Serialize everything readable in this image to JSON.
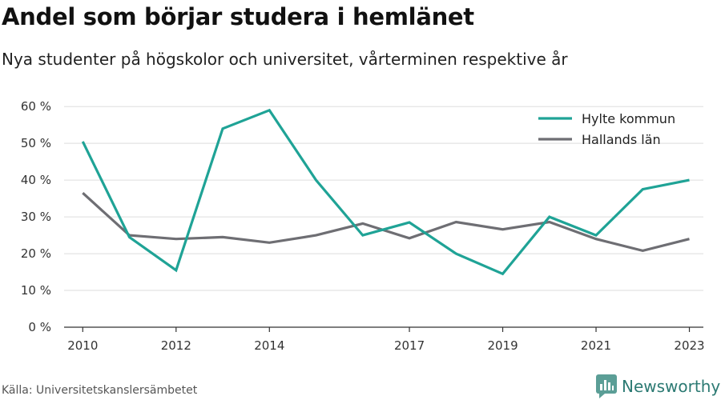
{
  "title": "Andel som börjar studera i hemlänet",
  "subtitle": "Nya studenter på högskolor och universitet, vårterminen respektive år",
  "source": "Källa: Universitetskanslersämbetet",
  "brand": "Newsworthy",
  "colors": {
    "hylte": "#1fa396",
    "halland": "#6e6e73",
    "grid": "#dddddd",
    "axis": "#333333",
    "brand": "#2c7a73"
  },
  "chart_data": {
    "type": "line",
    "x": [
      2010,
      2011,
      2012,
      2013,
      2014,
      2015,
      2016,
      2017,
      2018,
      2019,
      2020,
      2021,
      2022,
      2023
    ],
    "x_tick_labels": [
      "2010",
      "2012",
      "2014",
      "2017",
      "2019",
      "2021",
      "2023"
    ],
    "x_tick_values": [
      2010,
      2012,
      2014,
      2017,
      2019,
      2021,
      2023
    ],
    "y_tick_labels": [
      "0 %",
      "10 %",
      "20 %",
      "30 %",
      "40 %",
      "50 %",
      "60 %"
    ],
    "y_tick_values": [
      0,
      10,
      20,
      30,
      40,
      50,
      60
    ],
    "ylim": [
      0,
      62
    ],
    "xlim": [
      2009.6,
      2023.3
    ],
    "grid": true,
    "legend_position": "top-right",
    "series": [
      {
        "name": "Hylte kommun",
        "values": [
          50.5,
          24.5,
          15.5,
          54,
          59,
          40,
          25,
          28.5,
          20,
          14.5,
          30,
          25,
          37.5,
          40
        ]
      },
      {
        "name": "Hallands län",
        "values": [
          36.5,
          25,
          24,
          24.5,
          23,
          25,
          28.2,
          24.2,
          28.6,
          26.6,
          28.6,
          24,
          20.8,
          24
        ]
      }
    ]
  }
}
